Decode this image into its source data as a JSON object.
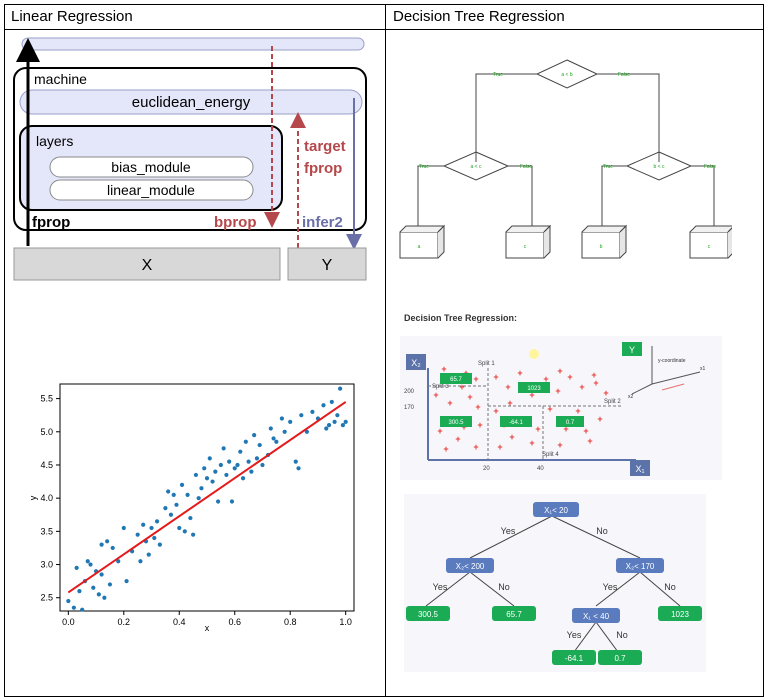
{
  "table": {
    "header_left": "Linear Regression",
    "header_right": "Decision Tree Regression"
  },
  "energy_diagram": {
    "machine_label": "machine",
    "energy_label": "euclidean_energy",
    "layers_label": "layers",
    "modules": [
      "bias_module",
      "linear_module"
    ],
    "fprop": "fprop",
    "bprop": "bprop",
    "target_line1": "target",
    "target_line2": "fprop",
    "infer": "infer2",
    "x_box": "X",
    "y_box": "Y",
    "colors": {
      "fill": "#e4e6f9",
      "arrow_red": "#b5484b",
      "arrow_blue": "#6b6fa8",
      "gray": "#d8d8d8"
    }
  },
  "flowchart": {
    "root": "a < b",
    "left_node": "a < c",
    "right_node": "b < c",
    "true_label": "True",
    "false_label": "False",
    "leaves": [
      "a",
      "c",
      "b",
      "c"
    ]
  },
  "scatter": {
    "xlabel": "x",
    "ylabel": "y",
    "xticks": [
      "0.0",
      "0.2",
      "0.4",
      "0.6",
      "0.8",
      "1.0"
    ],
    "yticks": [
      "2.5",
      "3.0",
      "3.5",
      "4.0",
      "4.5",
      "5.0",
      "5.5"
    ]
  },
  "chart_data": {
    "type": "scatter",
    "xlim": [
      -0.03,
      1.03
    ],
    "ylim": [
      2.3,
      5.72
    ],
    "grid": false,
    "points": [
      [
        0.0,
        2.45
      ],
      [
        0.02,
        2.35
      ],
      [
        0.03,
        2.95
      ],
      [
        0.04,
        2.6
      ],
      [
        0.05,
        2.32
      ],
      [
        0.06,
        2.75
      ],
      [
        0.07,
        3.05
      ],
      [
        0.08,
        3.0
      ],
      [
        0.09,
        2.65
      ],
      [
        0.1,
        2.9
      ],
      [
        0.11,
        2.55
      ],
      [
        0.12,
        2.85
      ],
      [
        0.12,
        3.3
      ],
      [
        0.13,
        2.5
      ],
      [
        0.14,
        3.35
      ],
      [
        0.15,
        2.7
      ],
      [
        0.16,
        3.25
      ],
      [
        0.18,
        3.05
      ],
      [
        0.2,
        3.55
      ],
      [
        0.21,
        2.75
      ],
      [
        0.23,
        3.2
      ],
      [
        0.25,
        3.45
      ],
      [
        0.27,
        3.6
      ],
      [
        0.28,
        3.35
      ],
      [
        0.29,
        3.15
      ],
      [
        0.3,
        3.55
      ],
      [
        0.31,
        3.4
      ],
      [
        0.32,
        3.65
      ],
      [
        0.33,
        3.3
      ],
      [
        0.35,
        3.85
      ],
      [
        0.36,
        4.1
      ],
      [
        0.37,
        3.75
      ],
      [
        0.38,
        4.05
      ],
      [
        0.39,
        3.9
      ],
      [
        0.4,
        3.55
      ],
      [
        0.41,
        4.2
      ],
      [
        0.42,
        3.5
      ],
      [
        0.43,
        4.05
      ],
      [
        0.44,
        3.7
      ],
      [
        0.45,
        3.45
      ],
      [
        0.46,
        4.35
      ],
      [
        0.48,
        4.15
      ],
      [
        0.49,
        4.45
      ],
      [
        0.5,
        4.3
      ],
      [
        0.51,
        4.6
      ],
      [
        0.52,
        4.25
      ],
      [
        0.53,
        4.4
      ],
      [
        0.54,
        3.95
      ],
      [
        0.55,
        4.5
      ],
      [
        0.56,
        4.75
      ],
      [
        0.57,
        4.35
      ],
      [
        0.58,
        4.55
      ],
      [
        0.59,
        3.95
      ],
      [
        0.6,
        4.45
      ],
      [
        0.61,
        4.5
      ],
      [
        0.62,
        4.7
      ],
      [
        0.63,
        4.3
      ],
      [
        0.64,
        4.85
      ],
      [
        0.65,
        4.55
      ],
      [
        0.66,
        4.4
      ],
      [
        0.67,
        4.95
      ],
      [
        0.68,
        4.6
      ],
      [
        0.69,
        4.8
      ],
      [
        0.7,
        4.5
      ],
      [
        0.72,
        4.65
      ],
      [
        0.73,
        5.05
      ],
      [
        0.75,
        4.85
      ],
      [
        0.77,
        5.2
      ],
      [
        0.78,
        5.0
      ],
      [
        0.8,
        5.15
      ],
      [
        0.82,
        4.55
      ],
      [
        0.83,
        4.45
      ],
      [
        0.84,
        5.25
      ],
      [
        0.86,
        5.0
      ],
      [
        0.88,
        5.3
      ],
      [
        0.9,
        5.2
      ],
      [
        0.92,
        5.4
      ],
      [
        0.93,
        5.05
      ],
      [
        0.94,
        5.1
      ],
      [
        0.95,
        5.45
      ],
      [
        0.96,
        5.15
      ],
      [
        0.97,
        5.25
      ],
      [
        0.98,
        5.65
      ],
      [
        0.99,
        5.1
      ],
      [
        1.0,
        5.15
      ],
      [
        0.26,
        3.05
      ],
      [
        0.47,
        4.0
      ],
      [
        0.74,
        4.9
      ]
    ],
    "fit_line": {
      "x": [
        0.0,
        1.0
      ],
      "y": [
        2.58,
        5.45
      ]
    },
    "colors": {
      "points": "#1f77b4",
      "line": "#e41a1c"
    }
  },
  "dtr": {
    "title": "Decision Tree Regression:",
    "split1": "Split 1",
    "split2": "Split 2",
    "split3": "Split 3",
    "split4": "Split 4",
    "x2_axis": "X₂",
    "x1_axis": "X₁",
    "y_label": "Y",
    "y_coordinate": "y-coordinate",
    "x1": "x1",
    "x2": "x2",
    "y_tick_200": "200",
    "y_tick_170": "170",
    "x_tick_20": "20",
    "x_tick_40": "40",
    "region_values": [
      "65.7",
      "1023",
      "300.5",
      "-64.1",
      "0.7"
    ]
  },
  "dtr_tree": {
    "root": "X₁< 20",
    "left": "X₂< 200",
    "right": "X₂< 170",
    "right_left": "X₁ < 40",
    "yes": "Yes",
    "no": "No",
    "leaf_ll": "300.5",
    "leaf_lr": "65.7",
    "leaf_rr": "1023",
    "leaf_rll": "-64.1",
    "leaf_rlr": "0.7"
  }
}
